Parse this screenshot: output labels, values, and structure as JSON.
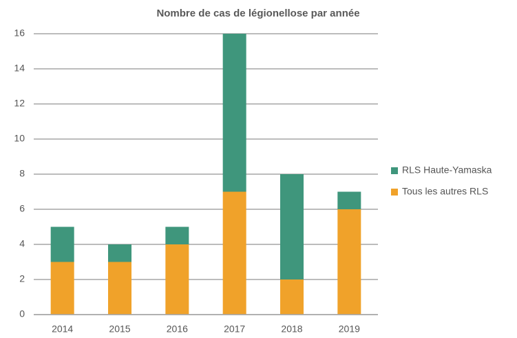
{
  "chart_data": {
    "type": "stacked_bar",
    "title": "Nombre de cas de légionellose par année",
    "categories": [
      "2014",
      "2015",
      "2016",
      "2017",
      "2018",
      "2019"
    ],
    "series": [
      {
        "name": "Tous les autres RLS",
        "color": "#f0a22a",
        "values": [
          3,
          3,
          4,
          7,
          2,
          6
        ]
      },
      {
        "name": "RLS Haute-Yamaska",
        "color": "#3f967c",
        "values": [
          2,
          1,
          1,
          9,
          6,
          1
        ]
      }
    ],
    "ylim": [
      0,
      16
    ],
    "yticks": [
      0,
      2,
      4,
      6,
      8,
      10,
      12,
      14,
      16
    ],
    "grid": true,
    "legend": "right"
  }
}
